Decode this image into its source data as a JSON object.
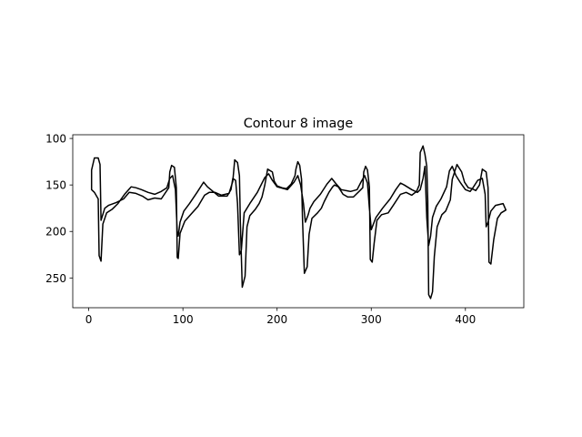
{
  "chart_data": {
    "type": "line",
    "title": "Contour 8 image",
    "xlabel": "",
    "ylabel": "",
    "xlim": [
      -17,
      462
    ],
    "ylim": [
      282,
      96
    ],
    "y_inverted": true,
    "grid": false,
    "xticks": [
      0,
      100,
      200,
      300,
      400
    ],
    "yticks": [
      100,
      150,
      200,
      250
    ],
    "line_color": "#000000",
    "series": [
      {
        "closed": true,
        "points": [
          [
            3,
            134
          ],
          [
            6,
            121
          ],
          [
            10,
            121
          ],
          [
            12,
            128
          ],
          [
            13,
            188
          ],
          [
            17,
            175
          ],
          [
            21,
            172
          ],
          [
            29,
            169
          ],
          [
            37,
            165
          ],
          [
            43,
            158
          ],
          [
            50,
            159
          ],
          [
            57,
            162
          ],
          [
            63,
            166
          ],
          [
            70,
            164
          ],
          [
            77,
            165
          ],
          [
            85,
            153
          ],
          [
            86,
            136
          ],
          [
            88,
            129
          ],
          [
            91,
            131
          ],
          [
            93,
            153
          ],
          [
            94,
            228
          ],
          [
            95,
            229
          ],
          [
            97,
            202
          ],
          [
            102,
            189
          ],
          [
            109,
            181
          ],
          [
            116,
            173
          ],
          [
            123,
            161
          ],
          [
            128,
            158
          ],
          [
            134,
            158
          ],
          [
            141,
            161
          ],
          [
            149,
            159
          ],
          [
            153,
            146
          ],
          [
            155,
            123
          ],
          [
            158,
            126
          ],
          [
            160,
            140
          ],
          [
            161,
            190
          ],
          [
            163,
            260
          ],
          [
            166,
            248
          ],
          [
            168,
            195
          ],
          [
            171,
            183
          ],
          [
            177,
            176
          ],
          [
            181,
            170
          ],
          [
            184,
            163
          ],
          [
            187,
            150
          ],
          [
            190,
            133
          ],
          [
            195,
            136
          ],
          [
            197,
            146
          ],
          [
            200,
            151
          ],
          [
            205,
            153
          ],
          [
            210,
            154
          ],
          [
            215,
            149
          ],
          [
            219,
            140
          ],
          [
            220,
            133
          ],
          [
            222,
            125
          ],
          [
            224,
            129
          ],
          [
            226,
            144
          ],
          [
            227,
            188
          ],
          [
            229,
            245
          ],
          [
            232,
            238
          ],
          [
            234,
            203
          ],
          [
            237,
            186
          ],
          [
            243,
            180
          ],
          [
            247,
            175
          ],
          [
            250,
            168
          ],
          [
            255,
            158
          ],
          [
            259,
            152
          ],
          [
            261,
            150
          ],
          [
            265,
            152
          ],
          [
            270,
            160
          ],
          [
            275,
            163
          ],
          [
            281,
            163
          ],
          [
            287,
            157
          ],
          [
            291,
            153
          ],
          [
            292,
            136
          ],
          [
            294,
            130
          ],
          [
            296,
            134
          ],
          [
            298,
            152
          ],
          [
            299,
            230
          ],
          [
            301,
            233
          ],
          [
            303,
            213
          ],
          [
            306,
            188
          ],
          [
            311,
            182
          ],
          [
            318,
            180
          ],
          [
            324,
            171
          ],
          [
            331,
            160
          ],
          [
            337,
            158
          ],
          [
            343,
            161
          ],
          [
            348,
            157
          ],
          [
            351,
            150
          ],
          [
            352,
            115
          ],
          [
            355,
            108
          ],
          [
            357,
            117
          ],
          [
            359,
            130
          ],
          [
            360,
            167
          ],
          [
            361,
            268
          ],
          [
            363,
            272
          ],
          [
            365,
            265
          ],
          [
            367,
            227
          ],
          [
            370,
            195
          ],
          [
            375,
            182
          ],
          [
            379,
            178
          ],
          [
            384,
            166
          ],
          [
            386,
            144
          ],
          [
            391,
            128
          ],
          [
            396,
            136
          ],
          [
            399,
            147
          ],
          [
            403,
            153
          ],
          [
            407,
            154
          ],
          [
            411,
            156
          ],
          [
            415,
            150
          ],
          [
            418,
            133
          ],
          [
            422,
            136
          ],
          [
            424,
            153
          ],
          [
            425,
            233
          ],
          [
            427,
            235
          ],
          [
            430,
            209
          ],
          [
            434,
            186
          ],
          [
            438,
            180
          ],
          [
            443,
            177
          ],
          [
            440,
            170
          ],
          [
            432,
            172
          ],
          [
            427,
            178
          ],
          [
            424,
            190
          ],
          [
            422,
            195
          ],
          [
            421,
            160
          ],
          [
            418,
            143
          ],
          [
            413,
            145
          ],
          [
            408,
            153
          ],
          [
            405,
            157
          ],
          [
            400,
            155
          ],
          [
            395,
            148
          ],
          [
            390,
            140
          ],
          [
            386,
            130
          ],
          [
            383,
            135
          ],
          [
            380,
            152
          ],
          [
            374,
            165
          ],
          [
            369,
            173
          ],
          [
            365,
            185
          ],
          [
            363,
            205
          ],
          [
            361,
            215
          ],
          [
            359,
            185
          ],
          [
            357,
            130
          ],
          [
            355,
            143
          ],
          [
            352,
            155
          ],
          [
            349,
            158
          ],
          [
            343,
            155
          ],
          [
            335,
            150
          ],
          [
            331,
            148
          ],
          [
            326,
            155
          ],
          [
            320,
            165
          ],
          [
            312,
            175
          ],
          [
            305,
            185
          ],
          [
            303,
            190
          ],
          [
            300,
            198
          ],
          [
            298,
            175
          ],
          [
            296,
            148
          ],
          [
            293,
            140
          ],
          [
            289,
            147
          ],
          [
            285,
            155
          ],
          [
            278,
            157
          ],
          [
            268,
            155
          ],
          [
            262,
            148
          ],
          [
            258,
            143
          ],
          [
            253,
            149
          ],
          [
            246,
            160
          ],
          [
            239,
            168
          ],
          [
            235,
            175
          ],
          [
            233,
            182
          ],
          [
            230,
            190
          ],
          [
            228,
            170
          ],
          [
            225,
            150
          ],
          [
            222,
            140
          ],
          [
            218,
            147
          ],
          [
            211,
            155
          ],
          [
            200,
            152
          ],
          [
            195,
            145
          ],
          [
            191,
            138
          ],
          [
            187,
            142
          ],
          [
            184,
            148
          ],
          [
            179,
            158
          ],
          [
            171,
            170
          ],
          [
            165,
            180
          ],
          [
            162,
            220
          ],
          [
            160,
            225
          ],
          [
            158,
            170
          ],
          [
            156,
            145
          ],
          [
            153,
            143
          ],
          [
            151,
            155
          ],
          [
            147,
            162
          ],
          [
            138,
            162
          ],
          [
            132,
            157
          ],
          [
            126,
            152
          ],
          [
            122,
            147
          ],
          [
            115,
            158
          ],
          [
            107,
            170
          ],
          [
            101,
            178
          ],
          [
            97,
            190
          ],
          [
            95,
            205
          ],
          [
            94,
            200
          ],
          [
            92,
            155
          ],
          [
            89,
            140
          ],
          [
            86,
            143
          ],
          [
            83,
            153
          ],
          [
            77,
            157
          ],
          [
            70,
            160
          ],
          [
            63,
            158
          ],
          [
            56,
            155
          ],
          [
            50,
            153
          ],
          [
            45,
            152
          ],
          [
            38,
            160
          ],
          [
            31,
            170
          ],
          [
            25,
            176
          ],
          [
            19,
            180
          ],
          [
            15,
            192
          ],
          [
            13,
            232
          ],
          [
            11,
            226
          ],
          [
            10,
            165
          ],
          [
            6,
            158
          ],
          [
            3,
            155
          ]
        ]
      }
    ]
  }
}
